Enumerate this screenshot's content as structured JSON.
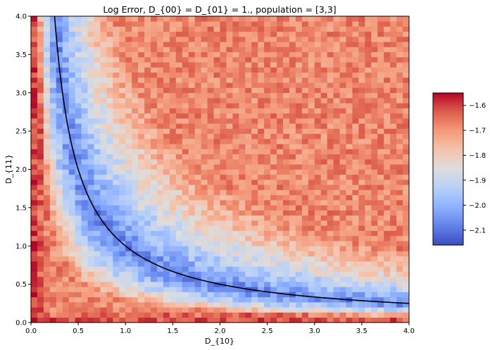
{
  "chart_data": {
    "type": "heatmap",
    "title": "Log Error, D_{00} = D_{01} = 1., population = [3,3]",
    "xlabel": "D_{10}",
    "ylabel": "D_{11}",
    "xlim": [
      0,
      4
    ],
    "ylim": [
      0,
      4
    ],
    "grid": false,
    "grid_size": [
      60,
      60
    ],
    "x_ticks": [
      {
        "value": 0,
        "label": "0.0"
      },
      {
        "value": 0.5,
        "label": "0.5"
      },
      {
        "value": 1,
        "label": "1.0"
      },
      {
        "value": 1.5,
        "label": "1.5"
      },
      {
        "value": 2,
        "label": "2.0"
      },
      {
        "value": 2.5,
        "label": "2.5"
      },
      {
        "value": 3,
        "label": "3.0"
      },
      {
        "value": 3.5,
        "label": "3.5"
      },
      {
        "value": 4,
        "label": "4.0"
      }
    ],
    "y_ticks": [
      {
        "value": 0,
        "label": "0.0"
      },
      {
        "value": 0.5,
        "label": "0.5"
      },
      {
        "value": 1,
        "label": "1.0"
      },
      {
        "value": 1.5,
        "label": "1.5"
      },
      {
        "value": 2,
        "label": "2.0"
      },
      {
        "value": 2.5,
        "label": "2.5"
      },
      {
        "value": 3,
        "label": "3.0"
      },
      {
        "value": 3.5,
        "label": "3.5"
      },
      {
        "value": 4,
        "label": "4.0"
      }
    ],
    "colorbar": {
      "colormap": "coolwarm",
      "vmin": -2.16,
      "vmax": -1.55,
      "ticks": [
        {
          "value": -2.1,
          "label": "−2.1"
        },
        {
          "value": -2.0,
          "label": "−2.0"
        },
        {
          "value": -1.9,
          "label": "−1.9"
        },
        {
          "value": -1.8,
          "label": "−1.8"
        },
        {
          "value": -1.7,
          "label": "−1.7"
        },
        {
          "value": -1.6,
          "label": "−1.6"
        }
      ]
    },
    "field_description": {
      "minimum_along_curve": "D_{10} * D_{11} = 1",
      "low_value": -2.08,
      "high_value": -1.68,
      "corner_values": {
        "near_x0": -1.62,
        "near_y0": -1.64
      }
    },
    "overlay_curve": {
      "equation": "D_{11} = 1 / D_{10}",
      "color": "#000000",
      "x_range": [
        0.25,
        4.0
      ]
    },
    "colors": {
      "cool": "#3b4cc0",
      "neutral": "#dddddd",
      "warm": "#b40426"
    }
  }
}
